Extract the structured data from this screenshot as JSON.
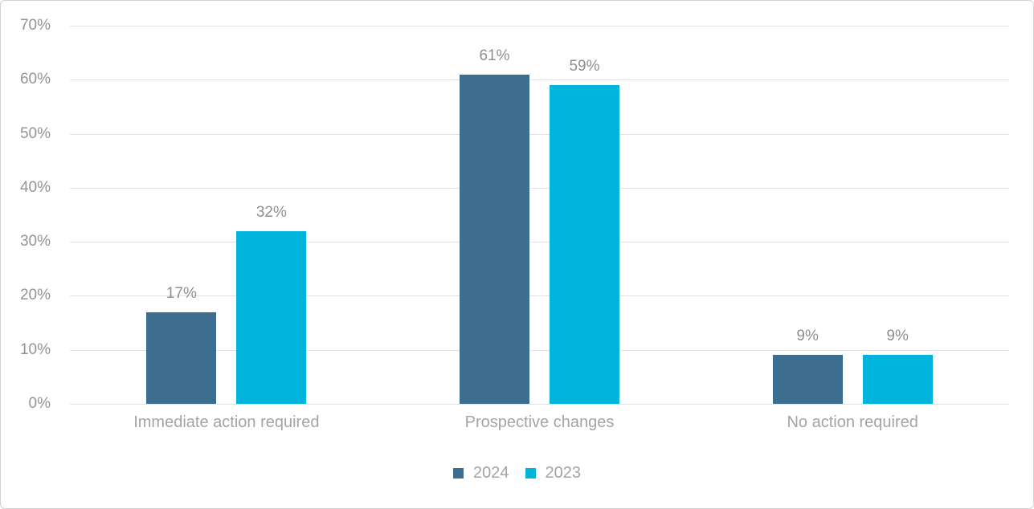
{
  "chart_data": {
    "type": "bar",
    "title": "",
    "categories": [
      "Immediate action required",
      "Prospective changes",
      "No action required"
    ],
    "series": [
      {
        "name": "2024",
        "color": "#3d6e8f",
        "values": [
          17,
          61,
          9
        ],
        "labels": [
          "17%",
          "61%",
          "9%"
        ]
      },
      {
        "name": "2023",
        "color": "#00b4dc",
        "values": [
          32,
          59,
          9
        ],
        "labels": [
          "32%",
          "59%",
          "9%"
        ]
      }
    ],
    "y_axis": {
      "ticks": [
        "0%",
        "10%",
        "20%",
        "30%",
        "40%",
        "50%",
        "60%",
        "70%"
      ],
      "min": 0,
      "max": 70,
      "step": 10
    },
    "grid": true,
    "legend_position": "bottom",
    "colors": {
      "grid": "#e2e2e2",
      "frame_border": "#d2d2d2",
      "axis_text": "#949494",
      "data_label_text": "#8f8f8f",
      "category_text": "#a4a4a4",
      "legend_text": "#a4a4a4"
    }
  }
}
